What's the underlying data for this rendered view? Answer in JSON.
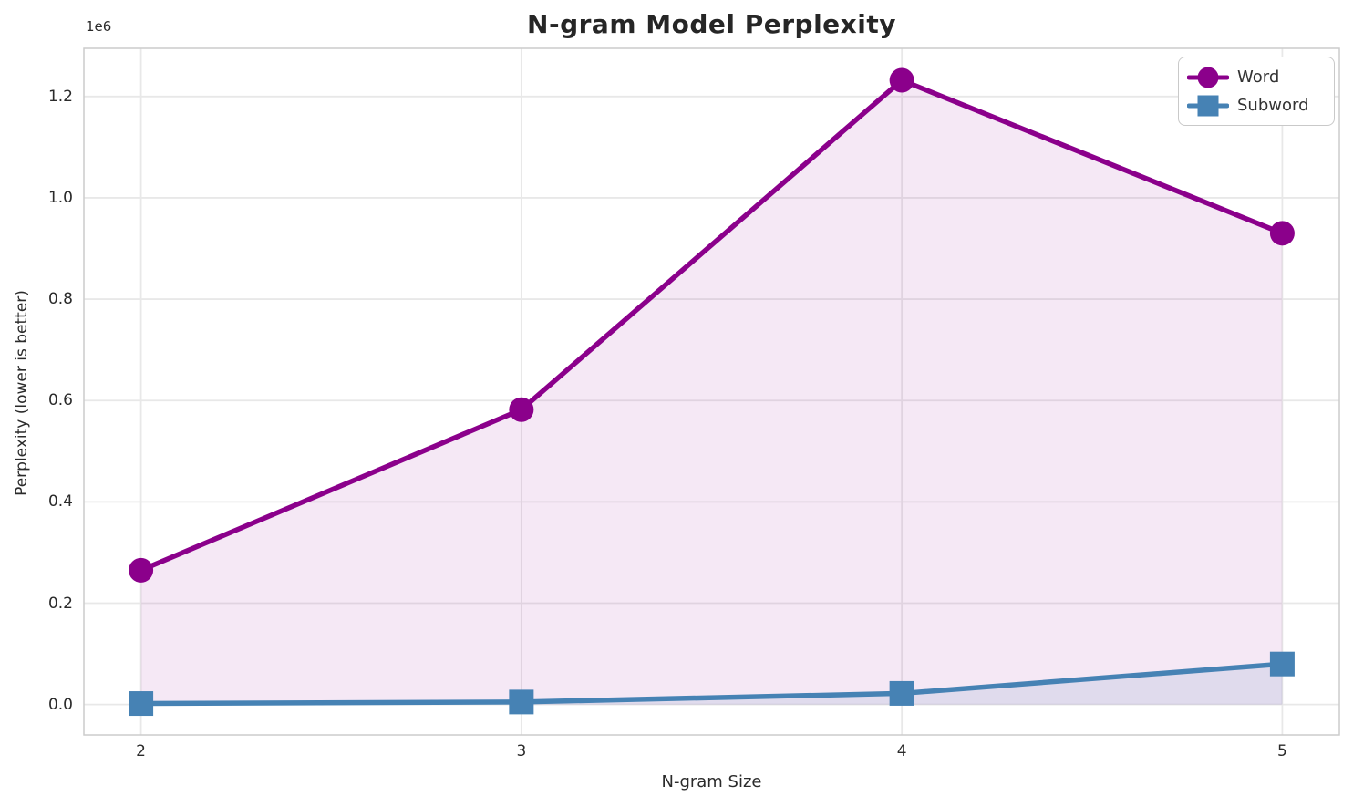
{
  "figure": {
    "background": "#ffffff",
    "grid_color": "#e8e8e8",
    "spine_color": "#cccccc",
    "text_color": "#2b2b2b",
    "legend_border_color": "#c9c9c9"
  },
  "chart_data": {
    "type": "line",
    "title": "N-gram Model Perplexity",
    "xlabel": "N-gram Size",
    "ylabel": "Perplexity (lower is better)",
    "y_offset_text": "1e6",
    "x": [
      2,
      3,
      4,
      5
    ],
    "x_tick_labels": [
      "2",
      "3",
      "4",
      "5"
    ],
    "y_tick_labels": [
      "0.0",
      "0.2",
      "0.4",
      "0.6",
      "0.8",
      "1.0",
      "1.2"
    ],
    "y_tick_values": [
      0,
      200000,
      400000,
      600000,
      800000,
      1000000,
      1200000
    ],
    "xlim": [
      1.85,
      5.15
    ],
    "ylim": [
      -60000,
      1295000
    ],
    "grid": true,
    "legend_position": "upper right",
    "series": [
      {
        "name": "Word",
        "marker": "circle",
        "color": "#8B008B",
        "fill_alpha": 0.09,
        "values": [
          265000,
          582000,
          1232000,
          930000
        ]
      },
      {
        "name": "Subword",
        "marker": "square",
        "color": "#4682B4",
        "fill_alpha": 0.12,
        "values": [
          2000,
          5000,
          22000,
          80000
        ]
      }
    ]
  }
}
